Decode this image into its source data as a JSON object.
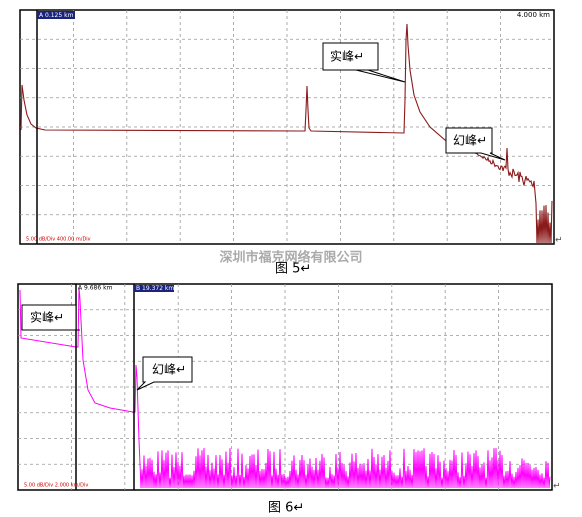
{
  "figure5": {
    "cursor_a": "A 0.125 km",
    "range_end": "4.000 km",
    "scale": "5.00 dB/Div  400.00 m/Div",
    "real_peak": "实峰↵",
    "ghost_peak": "幻峰↵",
    "end_mark": "↵"
  },
  "watermark": "深圳市福克网络有限公司",
  "caption5": "图 5↵",
  "figure6": {
    "cursor_a": "A 9.686 km",
    "cursor_b": "B 19.372 km",
    "scale": "5.00 dB/Div  2.000 km/Div",
    "real_peak": "实峰↵",
    "ghost_peak": "幻峰↵",
    "end_mark": "↵"
  },
  "caption6": "图 6↵"
}
